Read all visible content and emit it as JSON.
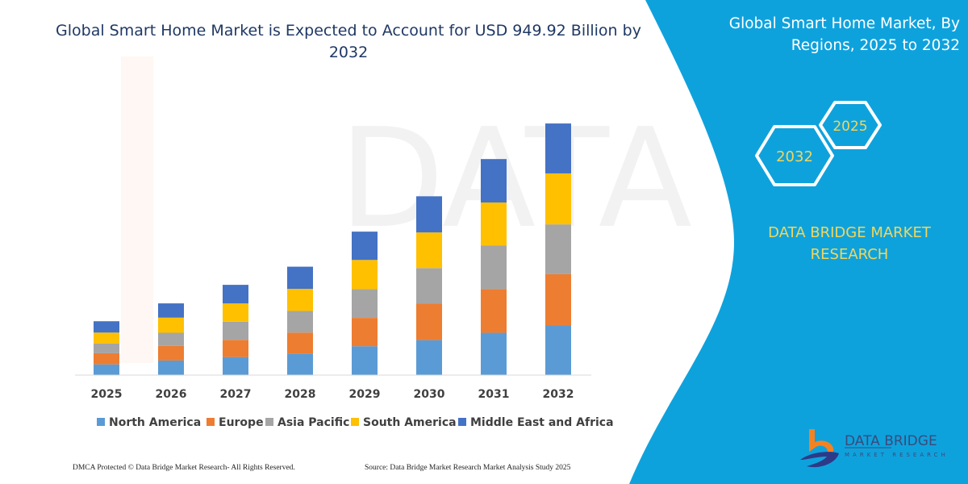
{
  "title": "Global Smart Home Market is Expected to Account for USD 949.92 Billion by 2032",
  "title_line1": "Global Smart Home Market is Expected to Account for USD 949.92 Billion by",
  "title_line2": "2032",
  "side_panel": {
    "title_line1": "Global Smart Home Market, By",
    "title_line2": "Regions, 2025 to 2032",
    "hex_start": "2025",
    "hex_end": "2032",
    "brand_line1": "DATA BRIDGE MARKET",
    "brand_line2": "RESEARCH",
    "logo_text": "DATA BRIDGE",
    "logo_subtext": "MARKET RESEARCH",
    "panel_color": "#0ea2dd",
    "accent_color": "#f2d65a"
  },
  "footer": {
    "left": "DMCA Protected © Data Bridge Market Research-  All Rights Reserved.",
    "right": "Source: Data Bridge Market Research  Market Analysis Study 2025"
  },
  "chart_data": {
    "type": "bar",
    "stacked": true,
    "categories": [
      "2025",
      "2026",
      "2027",
      "2028",
      "2029",
      "2030",
      "2031",
      "2032"
    ],
    "series": [
      {
        "name": "North America",
        "color": "#5b9bd5",
        "values": [
          40.6,
          55.0,
          68.1,
          81.2,
          109.0,
          132.2,
          159.7,
          187.2
        ]
      },
      {
        "name": "Europe",
        "color": "#ed7d31",
        "values": [
          41.8,
          55.0,
          65.0,
          79.4,
          106.9,
          137.4,
          164.9,
          193.6
        ]
      },
      {
        "name": "Asia Pacific",
        "color": "#a5a5a5",
        "values": [
          36.6,
          49.8,
          68.4,
          81.5,
          108.7,
          134.4,
          164.0,
          188.1
        ]
      },
      {
        "name": "South America",
        "color": "#ffc000",
        "values": [
          41.5,
          57.1,
          69.0,
          83.4,
          110.0,
          134.4,
          162.8,
          192.4
        ]
      },
      {
        "name": "Middle East and Africa",
        "color": "#4472c4",
        "values": [
          42.8,
          53.8,
          70.2,
          83.7,
          106.9,
          136.5,
          164.0,
          188.4
        ]
      }
    ],
    "unit": "USD Billion",
    "ylim": [
      0,
      950
    ],
    "y_axis_visible": false,
    "grid": false,
    "legend": "bottom"
  }
}
